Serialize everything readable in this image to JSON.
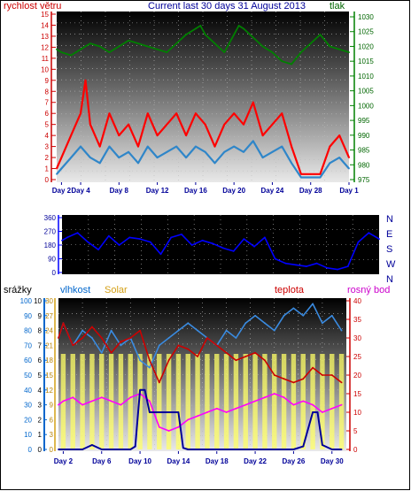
{
  "header": {
    "left_label": "rychlost větru",
    "title": "Current last 30 days 31 August 2013",
    "right_label": "tlak"
  },
  "colors": {
    "wind": "#ff0000",
    "gust": "#2f86c9",
    "pressure": "#008000",
    "direction": "#0000ff",
    "humidity": "#3a8be0",
    "solar": "#ffff66",
    "temperature": "#cc0000",
    "dewpoint": "#ff00ff",
    "rain": "#000099"
  },
  "chart_data": [
    {
      "type": "line",
      "title": "Current last 30 days 31 August 2013",
      "ylabel_left": "rychlost větru",
      "ylabel_right": "tlak",
      "left_ticks": [
        "0",
        "1",
        "2",
        "3",
        "4",
        "5",
        "6",
        "7",
        "8",
        "9",
        "10",
        "11",
        "12",
        "13",
        "14",
        "15"
      ],
      "right_ticks": [
        "975",
        "980",
        "985",
        "990",
        "995",
        "1000",
        "1005",
        "1010",
        "1015",
        "1020",
        "1025",
        "1030"
      ],
      "ylim_left": [
        0,
        15
      ],
      "ylim_right": [
        975,
        1030
      ],
      "x_ticks": [
        "Day 2",
        "Day 4",
        "Day 8",
        "Day 12",
        "Day 16",
        "Day 20",
        "Day 24",
        "Day 28",
        "Day 1"
      ],
      "x_tick_days": [
        2,
        4,
        8,
        12,
        16,
        20,
        24,
        28,
        32
      ],
      "xlim": [
        1.5,
        32
      ],
      "series": [
        {
          "color": "pressure",
          "x": [
            1.5,
            2,
            3,
            4,
            5,
            6,
            7,
            8,
            9,
            10,
            11,
            12,
            13,
            14,
            15,
            16,
            16.5,
            17,
            18,
            19,
            20,
            20.5,
            21,
            22,
            23,
            24,
            25,
            26,
            27,
            28,
            29,
            30,
            31,
            32
          ],
          "y": [
            1019,
            1018,
            1017,
            1019,
            1021,
            1020,
            1018,
            1020,
            1022,
            1021,
            1020,
            1019,
            1018,
            1021,
            1024,
            1026,
            1027,
            1024,
            1021,
            1018,
            1024,
            1027,
            1026,
            1023,
            1020,
            1018,
            1015,
            1014,
            1018,
            1021,
            1024,
            1020,
            1019,
            1018
          ]
        },
        {
          "color": "wind",
          "x": [
            1.5,
            2,
            3,
            4,
            4.5,
            5,
            6,
            7,
            8,
            9,
            10,
            11,
            12,
            13,
            14,
            15,
            16,
            17,
            18,
            19,
            20,
            21,
            22,
            23,
            24,
            25,
            26,
            27,
            28,
            29,
            30,
            31,
            32
          ],
          "y": [
            1,
            2,
            4,
            6,
            9,
            5,
            3,
            6,
            4,
            5,
            3,
            6,
            4,
            5,
            6,
            4,
            6,
            5,
            3,
            5,
            6,
            5,
            7,
            4,
            5,
            6,
            3,
            0.5,
            0.5,
            0.5,
            3,
            4,
            2
          ]
        },
        {
          "color": "gust",
          "x": [
            1.5,
            2,
            3,
            4,
            5,
            6,
            7,
            8,
            9,
            10,
            11,
            12,
            13,
            14,
            15,
            16,
            17,
            18,
            19,
            20,
            21,
            22,
            23,
            24,
            25,
            26,
            27,
            28,
            29,
            30,
            31,
            32
          ],
          "y": [
            0.5,
            1,
            2,
            3,
            2,
            1.5,
            3,
            2,
            2.5,
            1.5,
            3,
            2,
            2.5,
            3,
            2,
            3,
            2.5,
            1.5,
            2.5,
            3,
            2.5,
            3.5,
            2,
            2.5,
            3,
            1.5,
            0.2,
            0.2,
            0.2,
            1.5,
            2,
            1
          ]
        }
      ]
    },
    {
      "type": "line",
      "title": "",
      "left_ticks": [
        "0",
        "90",
        "180",
        "270",
        "360"
      ],
      "right_ticks": [
        "N",
        "W",
        "S",
        "E",
        "N"
      ],
      "ylim": [
        0,
        360
      ],
      "series": [
        {
          "color": "direction",
          "x": [
            1.5,
            2,
            3,
            4,
            5,
            6,
            7,
            8,
            9,
            10,
            11,
            12,
            13,
            14,
            15,
            16,
            17,
            18,
            19,
            20,
            21,
            22,
            23,
            24,
            25,
            26,
            27,
            28,
            29,
            30,
            31,
            32
          ],
          "y": [
            210,
            230,
            260,
            200,
            150,
            240,
            180,
            230,
            220,
            200,
            120,
            230,
            250,
            180,
            210,
            190,
            160,
            140,
            220,
            170,
            230,
            90,
            60,
            50,
            40,
            60,
            30,
            20,
            40,
            200,
            260,
            220
          ]
        }
      ]
    },
    {
      "type": "line",
      "ylabel_left_1": "srážky",
      "ylabel_left_2": "vlhkost",
      "ylabel_left_3": "Solar",
      "ylabel_right_1": "teplota",
      "ylabel_right_2": "rosný bod",
      "rain_ticks": [
        "0",
        "1",
        "2",
        "3",
        "4",
        "5",
        "6",
        "7",
        "8",
        "9",
        "10"
      ],
      "humidity_ticks": [
        "0",
        "10",
        "20",
        "30",
        "40",
        "50",
        "60",
        "70",
        "80",
        "90",
        "100"
      ],
      "solar_ticks": [
        "0",
        "3",
        "6",
        "9",
        "12",
        "15",
        "18",
        "21",
        "24",
        "27",
        "30"
      ],
      "temp_ticks": [
        "0",
        "5",
        "10",
        "15",
        "20",
        "25",
        "30",
        "35",
        "40"
      ],
      "ylim_rain": [
        0,
        10
      ],
      "ylim_humidity": [
        0,
        100
      ],
      "ylim_solar": [
        0,
        30
      ],
      "ylim_temperature": [
        0,
        40
      ],
      "x_ticks": [
        "Day 2",
        "Day 6",
        "Day 10",
        "Day 14",
        "Day 18",
        "Day 22",
        "Day 26",
        "Day 30"
      ],
      "x_tick_days": [
        2,
        6,
        10,
        14,
        18,
        22,
        26,
        30
      ],
      "xlim": [
        1.5,
        31.5
      ],
      "series": [
        {
          "color": "humidity",
          "x": [
            1.5,
            2,
            3,
            4,
            5,
            6,
            7,
            8,
            9,
            10,
            11,
            12,
            13,
            14,
            15,
            16,
            17,
            18,
            19,
            20,
            21,
            22,
            23,
            24,
            25,
            26,
            27,
            28,
            29,
            30,
            31
          ],
          "y": [
            75,
            85,
            70,
            80,
            75,
            65,
            80,
            70,
            75,
            60,
            55,
            70,
            75,
            80,
            85,
            80,
            75,
            70,
            80,
            75,
            85,
            90,
            85,
            80,
            90,
            95,
            90,
            98,
            85,
            90,
            80
          ]
        },
        {
          "color": "temperature",
          "x": [
            1.5,
            2,
            3,
            4,
            5,
            6,
            7,
            8,
            9,
            10,
            11,
            12,
            13,
            14,
            15,
            16,
            17,
            18,
            19,
            20,
            21,
            22,
            23,
            24,
            25,
            26,
            27,
            28,
            29,
            30,
            31
          ],
          "y": [
            30,
            34,
            28,
            30,
            33,
            30,
            26,
            29,
            30,
            32,
            24,
            18,
            24,
            28,
            27,
            25,
            30,
            28,
            26,
            24,
            25,
            26,
            24,
            20,
            19,
            18,
            19,
            22,
            20,
            20,
            18
          ]
        },
        {
          "color": "dewpoint",
          "x": [
            1.5,
            2,
            3,
            4,
            5,
            6,
            7,
            8,
            9,
            10,
            11,
            12,
            13,
            14,
            15,
            16,
            17,
            18,
            19,
            20,
            21,
            22,
            23,
            24,
            25,
            26,
            27,
            28,
            29,
            30,
            31
          ],
          "y": [
            12,
            13,
            14,
            12,
            13,
            14,
            13,
            12,
            14,
            15,
            13,
            6,
            5,
            6,
            8,
            9,
            10,
            11,
            10,
            11,
            12,
            13,
            14,
            15,
            14,
            12,
            13,
            12,
            10,
            11,
            12
          ]
        },
        {
          "color": "rain",
          "x": [
            1.5,
            2,
            3,
            4,
            5,
            6,
            7,
            8,
            9,
            9.5,
            10,
            10.5,
            11,
            12,
            13,
            14,
            14.5,
            15,
            16,
            17,
            18,
            19,
            20,
            21,
            22,
            23,
            24,
            25,
            26,
            27,
            28,
            28.5,
            29,
            30,
            31
          ],
          "y": [
            0,
            0,
            0,
            0,
            0.3,
            0,
            0,
            0,
            0,
            0.2,
            4,
            4,
            2.5,
            2.5,
            2.5,
            2.5,
            0.1,
            0,
            0,
            0,
            0,
            0,
            0,
            0,
            0,
            0,
            0,
            0,
            0,
            0.2,
            2.5,
            2.5,
            0.3,
            0,
            0
          ]
        }
      ]
    }
  ]
}
